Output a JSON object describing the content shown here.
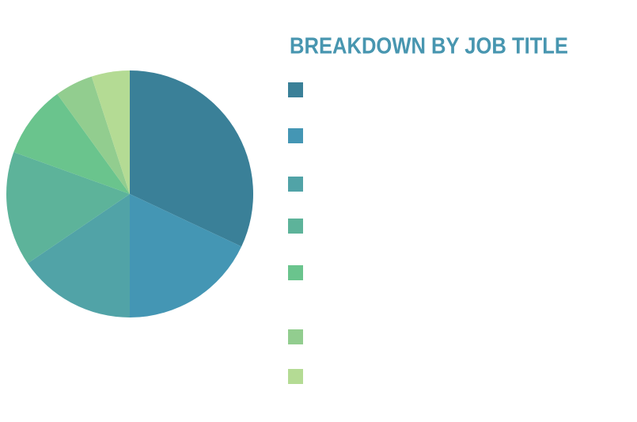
{
  "chart_data": {
    "type": "pie",
    "title": "BREAKDOWN BY JOB TITLE",
    "categories": [
      null,
      null,
      null,
      null,
      null,
      null,
      null
    ],
    "values": [
      32,
      18,
      15.5,
      15,
      9.5,
      5,
      5
    ],
    "colors": [
      "#3a8098",
      "#4496b4",
      "#51a3a7",
      "#5db39a",
      "#6ac48d",
      "#92cd8f",
      "#b4db94"
    ]
  }
}
